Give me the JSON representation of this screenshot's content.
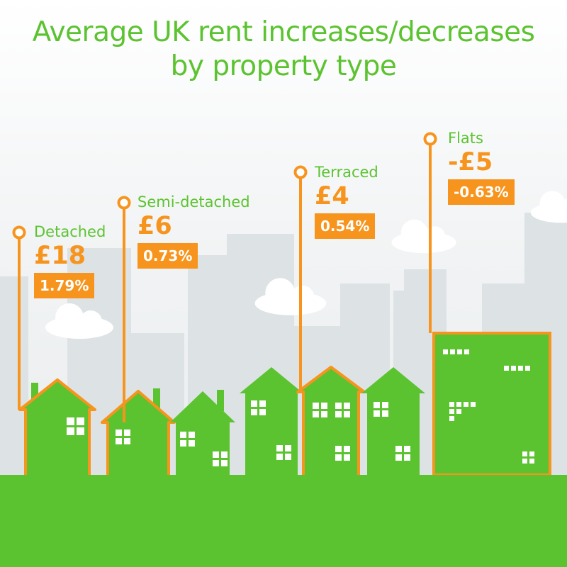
{
  "title_lines": [
    "Average UK rent increases/decreases",
    "by property type"
  ],
  "colors": {
    "accent_green": "#5cc330",
    "accent_orange": "#f7941d",
    "building_grey": "#dde2e5",
    "window_white": "#ffffff"
  },
  "chart_data": {
    "type": "table",
    "categories": [
      "Detached",
      "Semi-detached",
      "Terraced",
      "Flats"
    ],
    "rent_change_display": [
      "£18",
      "£6",
      "£4",
      "-£5"
    ],
    "rent_change_gbp": [
      18,
      6,
      4,
      -5
    ],
    "percent_change_display": [
      "1.79%",
      "0.73%",
      "0.54%",
      "-0.63%"
    ],
    "percent_change": [
      1.79,
      0.73,
      0.54,
      -0.63
    ]
  },
  "items": [
    {
      "type": "Detached",
      "amount": "£18",
      "pct": "1.79%"
    },
    {
      "type": "Semi-detached",
      "amount": "£6",
      "pct": "0.73%"
    },
    {
      "type": "Terraced",
      "amount": "£4",
      "pct": "0.54%"
    },
    {
      "type": "Flats",
      "amount": "-£5",
      "pct": "-0.63%"
    }
  ]
}
